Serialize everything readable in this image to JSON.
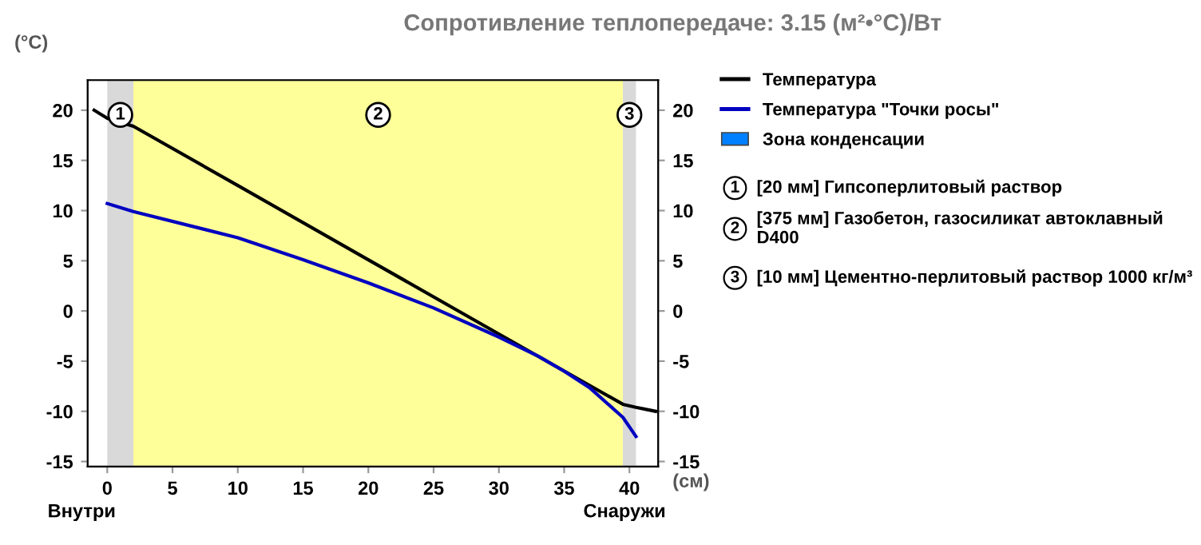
{
  "chart_data": {
    "type": "line",
    "title": "Сопротивление теплопередаче: 3.15 (м²•°C)/Вт",
    "xlim": [
      -1.5,
      42.2
    ],
    "xticks": [
      0,
      5,
      10,
      15,
      20,
      25,
      30,
      35,
      40
    ],
    "ylim": [
      -15.5,
      23
    ],
    "yticks": [
      -15,
      -10,
      -5,
      0,
      5,
      10,
      15,
      20
    ],
    "y2lim": [
      -15.5,
      23
    ],
    "y2ticks": [
      -15,
      -10,
      -5,
      0,
      5,
      10,
      15,
      20
    ],
    "grid": false,
    "legend": "right",
    "marker": "none",
    "line_style": "solid",
    "series": [
      {
        "name": "Температура",
        "color": "#000000",
        "x": [
          -1,
          0,
          2,
          10,
          20,
          30,
          39.5,
          40.5,
          42
        ],
        "values": [
          20,
          19.2,
          18.4,
          12.5,
          5.1,
          -2.3,
          -9.3,
          -9.6,
          -10
        ]
      },
      {
        "name": "Температура \"Точки росы\"",
        "color": "#0000c0",
        "x": [
          0,
          2,
          10,
          15,
          20,
          25,
          30,
          33,
          35,
          37,
          39.5,
          40.5
        ],
        "values": [
          10.7,
          9.9,
          7.3,
          5.1,
          2.8,
          0.3,
          -2.6,
          -4.5,
          -6,
          -7.7,
          -10.6,
          -12.5
        ]
      },
      {
        "name": "Зона конденсации",
        "type": "area",
        "color": "#0080ff"
      }
    ],
    "bands": [
      {
        "axis": "x",
        "from": 0,
        "to": 2,
        "label": "1",
        "color": "#d9d9d9"
      },
      {
        "axis": "x",
        "from": 2,
        "to": 39.5,
        "label": "2",
        "color": "#ffff99"
      },
      {
        "axis": "x",
        "from": 39.5,
        "to": 40.5,
        "label": "3",
        "color": "#d9d9d9"
      }
    ],
    "annotations": [
      "(°C)",
      "(см)",
      "Внутри",
      "Снаружи",
      "[20 мм] Гипсоперлитовый раствор",
      "[375 мм] Газобетон, газосиликат автоклавный D400",
      "[10 мм] Цементно-перлитовый раствор 1000 кг/м³"
    ]
  }
}
